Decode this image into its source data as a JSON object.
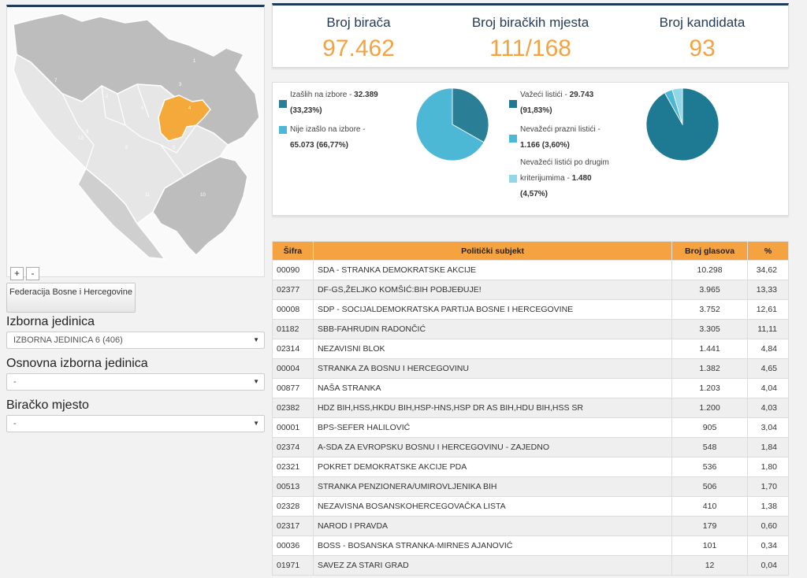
{
  "map": {
    "zoom_in": "+",
    "zoom_out": "-",
    "region_labels": [
      "1",
      "2",
      "3",
      "4",
      "5",
      "6",
      "7",
      "8",
      "9",
      "10",
      "11",
      "12"
    ],
    "highlight_color": "#f5a93a"
  },
  "filters": {
    "federation_button": "Federacija Bosne i Hercegovine",
    "izborna_label": "Izborna jedinica",
    "izborna_value": "IZBORNA JEDINICA 6 (406)",
    "osnovna_label": "Osnovna izborna jedinica",
    "osnovna_value": "-",
    "biracko_label": "Biračko mjesto",
    "biracko_value": "-"
  },
  "stats": {
    "voters_label": "Broj birača",
    "voters_value": "97.462",
    "stations_label": "Broj biračkih mjesta",
    "stations_value": "111/168",
    "candidates_label": "Broj kandidata",
    "candidates_value": "93"
  },
  "turnout": {
    "item1_text": "Izašlih na izbore - ",
    "item1_value": "32.389",
    "item1_pct": "(33,23%)",
    "item2_text": "Nije izašlo na izbore - ",
    "item2_value": "65.073 (66,77%)",
    "slices": [
      33.23,
      66.77
    ],
    "colors": [
      "#2a7f96",
      "#4db8d6"
    ]
  },
  "ballots": {
    "item1_text": "Važeći listići - ",
    "item1_value": "29.743",
    "item1_pct": "(91,83%)",
    "item2_text": "Nevažeći prazni listići - ",
    "item2_value": "1.166 (3,60%)",
    "item3_line1": "Nevažeći listići po drugim",
    "item3_text": "kriterijumima - ",
    "item3_value": "1.480",
    "item3_pct": "(4,57%)",
    "slices": [
      91.83,
      3.6,
      4.57
    ],
    "colors": [
      "#1e7a93",
      "#4db8d6",
      "#92d6e8"
    ]
  },
  "table": {
    "headers": [
      "Šifra",
      "Politički subjekt",
      "Broj glasova",
      "%"
    ],
    "rows": [
      [
        "00090",
        "SDA - STRANKA DEMOKRATSKE AKCIJE",
        "10.298",
        "34,62"
      ],
      [
        "02377",
        "DF-GS,ŽELJKO KOMŠIĆ:BIH POBJEĐUJE!",
        "3.965",
        "13,33"
      ],
      [
        "00008",
        "SDP - SOCIJALDEMOKRATSKA PARTIJA BOSNE I HERCEGOVINE",
        "3.752",
        "12,61"
      ],
      [
        "01182",
        "SBB-FAHRUDIN RADONČIĆ",
        "3.305",
        "11,11"
      ],
      [
        "02314",
        "NEZAVISNI BLOK",
        "1.441",
        "4,84"
      ],
      [
        "00004",
        "STRANKA ZA BOSNU I HERCEGOVINU",
        "1.382",
        "4,65"
      ],
      [
        "00877",
        "NAŠA STRANKA",
        "1.203",
        "4,04"
      ],
      [
        "02382",
        "HDZ BIH,HSS,HKDU BIH,HSP-HNS,HSP DR AS BIH,HDU BIH,HSS SR",
        "1.200",
        "4,03"
      ],
      [
        "00001",
        "BPS-SEFER HALILOVIĆ",
        "905",
        "3,04"
      ],
      [
        "02374",
        "A-SDA ZA EVROPSKU BOSNU I HERCEGOVINU - ZAJEDNO",
        "548",
        "1,84"
      ],
      [
        "02321",
        "POKRET DEMOKRATSKE AKCIJE PDA",
        "536",
        "1,80"
      ],
      [
        "00513",
        "STRANKA PENZIONERA/UMIROVLJENIKA BIH",
        "506",
        "1,70"
      ],
      [
        "02328",
        "NEZAVISNA BOSANSKOHERCEGOVAČKA LISTA",
        "410",
        "1,38"
      ],
      [
        "02317",
        "NAROD I PRAVDA",
        "179",
        "0,60"
      ],
      [
        "00036",
        "BOSS - BOSANSKA STRANKA-MIRNES AJANOVIĆ",
        "101",
        "0,34"
      ],
      [
        "01971",
        "SAVEZ ZA STARI GRAD",
        "12",
        "0,04"
      ]
    ]
  }
}
